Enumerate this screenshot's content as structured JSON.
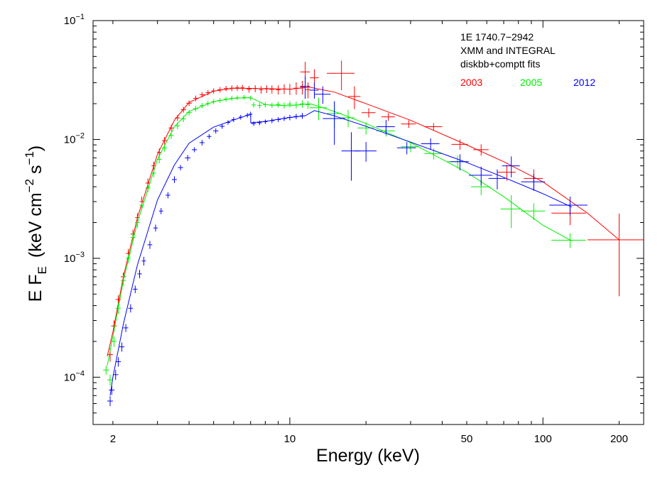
{
  "chart_data": {
    "type": "scatter",
    "x_scale": "log",
    "y_scale": "log",
    "xlim": [
      1.67,
      250
    ],
    "ylim": [
      4e-05,
      0.1
    ],
    "xlabel": "Energy (keV)",
    "ylabel": {
      "prefix": "E  F",
      "sub": "E",
      "units": "(keV cm",
      "exp1": "−2",
      "mid": " s",
      "exp2": "−1",
      "close": ")"
    },
    "x_tick_labels": [
      {
        "value": 2,
        "label": "2"
      },
      {
        "value": 10,
        "label": "10"
      },
      {
        "value": 50,
        "label": "50"
      },
      {
        "value": 100,
        "label": "100"
      },
      {
        "value": 200,
        "label": "200"
      }
    ],
    "y_tick_labels": [
      {
        "value": 0.0001,
        "base": "10",
        "exp": "−4"
      },
      {
        "value": 0.001,
        "base": "10",
        "exp": "−3"
      },
      {
        "value": 0.01,
        "base": "10",
        "exp": "−2"
      },
      {
        "value": 0.1,
        "base": "10",
        "exp": "−1"
      }
    ],
    "annotations": [
      "1E 1740.7−2942",
      "XMM and INTEGRAL",
      "diskbb+comptt fits"
    ],
    "legend_placement": "top-right",
    "grid": false,
    "series": [
      {
        "name": "2003",
        "color": "#ff0000",
        "model": {
          "x": [
            1.9,
            2.0,
            2.2,
            2.5,
            3.0,
            3.5,
            4.0,
            5.0,
            6.0,
            8.0,
            10.0,
            12.0,
            15.0,
            20.0,
            30.0,
            50.0,
            70.0,
            100.0,
            150.0,
            200.0
          ],
          "y": [
            0.00015,
            0.00024,
            0.0007,
            0.0022,
            0.0075,
            0.0145,
            0.0205,
            0.0255,
            0.027,
            0.0268,
            0.0265,
            0.0275,
            0.025,
            0.02,
            0.0145,
            0.009,
            0.0065,
            0.0044,
            0.0024,
            0.00143
          ]
        },
        "points": [
          [
            1.95,
            0.000155,
            0.05,
            2e-05
          ],
          [
            2.02,
            0.00027,
            0.05,
            3e-05
          ],
          [
            2.1,
            0.00045,
            0.05,
            4e-05
          ],
          [
            2.2,
            0.0007,
            0.05,
            6e-05
          ],
          [
            2.3,
            0.0011,
            0.05,
            0.0001
          ],
          [
            2.4,
            0.0016,
            0.05,
            0.00014
          ],
          [
            2.5,
            0.0022,
            0.05,
            0.0002
          ],
          [
            2.6,
            0.003,
            0.05,
            0.0003
          ],
          [
            2.75,
            0.0043,
            0.06,
            0.0004
          ],
          [
            2.9,
            0.006,
            0.06,
            0.0005
          ],
          [
            3.05,
            0.0078,
            0.06,
            0.0006
          ],
          [
            3.2,
            0.0098,
            0.07,
            0.0007
          ],
          [
            3.4,
            0.0125,
            0.08,
            0.0008
          ],
          [
            3.6,
            0.0152,
            0.08,
            0.0009
          ],
          [
            3.8,
            0.0178,
            0.09,
            0.001
          ],
          [
            4.0,
            0.0202,
            0.1,
            0.0011
          ],
          [
            4.25,
            0.0222,
            0.1,
            0.0012
          ],
          [
            4.5,
            0.0238,
            0.1,
            0.0012
          ],
          [
            4.75,
            0.0248,
            0.1,
            0.0013
          ],
          [
            5.0,
            0.0256,
            0.1,
            0.0013
          ],
          [
            5.3,
            0.0262,
            0.12,
            0.0014
          ],
          [
            5.6,
            0.0268,
            0.12,
            0.0014
          ],
          [
            5.9,
            0.027,
            0.12,
            0.0015
          ],
          [
            6.2,
            0.0272,
            0.12,
            0.0015
          ],
          [
            6.5,
            0.0272,
            0.12,
            0.0016
          ],
          [
            6.9,
            0.0265,
            0.15,
            0.0017
          ],
          [
            7.3,
            0.0268,
            0.15,
            0.0018
          ],
          [
            7.7,
            0.0262,
            0.15,
            0.0019
          ],
          [
            8.1,
            0.0266,
            0.15,
            0.002
          ],
          [
            8.5,
            0.0264,
            0.2,
            0.0021
          ],
          [
            9.0,
            0.0262,
            0.2,
            0.0023
          ],
          [
            9.5,
            0.0266,
            0.2,
            0.0025
          ],
          [
            10.0,
            0.0265,
            0.25,
            0.0028
          ],
          [
            10.6,
            0.027,
            0.25,
            0.0032
          ],
          [
            11.2,
            0.0275,
            0.25,
            0.0036
          ],
          [
            11.8,
            0.0262,
            0.25,
            0.004
          ],
          [
            11.5,
            0.037,
            0.5,
            0.008
          ],
          [
            12.5,
            0.033,
            0.5,
            0.006
          ],
          [
            16.0,
            0.036,
            2.0,
            0.01
          ],
          [
            18.0,
            0.023,
            1.0,
            0.005
          ],
          [
            20.5,
            0.0168,
            1.3,
            0.0015
          ],
          [
            24.5,
            0.0155,
            1.5,
            0.0012
          ],
          [
            29.5,
            0.0135,
            2.0,
            0.001
          ],
          [
            37.0,
            0.0128,
            3.0,
            0.0009
          ],
          [
            47.0,
            0.0091,
            3.5,
            0.0009
          ],
          [
            57.0,
            0.0082,
            4.0,
            0.0009
          ],
          [
            72.0,
            0.0053,
            6.0,
            0.0008
          ],
          [
            92.0,
            0.0047,
            8.0,
            0.0009
          ],
          [
            128.0,
            0.0024,
            20.0,
            0.0005
          ],
          [
            200.0,
            0.00143,
            50.0,
            0.00095
          ]
        ]
      },
      {
        "name": "2005",
        "color": "#00ee00",
        "model": {
          "x": [
            1.9,
            2.0,
            2.2,
            2.5,
            3.0,
            3.5,
            4.0,
            5.0,
            6.0,
            7.0,
            8.0,
            10.0,
            12.0,
            15.0,
            20.0,
            30.0,
            50.0,
            70.0,
            100.0,
            130.0
          ],
          "y": [
            0.000125,
            0.00022,
            0.00065,
            0.002,
            0.0068,
            0.0128,
            0.0172,
            0.0208,
            0.0222,
            0.0225,
            0.0196,
            0.0192,
            0.02,
            0.0172,
            0.0136,
            0.0094,
            0.0053,
            0.0033,
            0.0019,
            0.0014
          ]
        },
        "points": [
          [
            1.88,
            0.000115,
            0.05,
            1e-05
          ],
          [
            1.95,
            9.5e-05,
            0.05,
            1e-05
          ],
          [
            2.02,
            0.0002,
            0.05,
            2e-05
          ],
          [
            2.1,
            0.00038,
            0.05,
            4e-05
          ],
          [
            2.2,
            0.00065,
            0.05,
            6e-05
          ],
          [
            2.3,
            0.001,
            0.05,
            9e-05
          ],
          [
            2.4,
            0.0015,
            0.05,
            0.00013
          ],
          [
            2.5,
            0.002,
            0.05,
            0.00018
          ],
          [
            2.6,
            0.0028,
            0.05,
            0.00025
          ],
          [
            2.75,
            0.0039,
            0.06,
            0.0003
          ],
          [
            2.9,
            0.0052,
            0.06,
            0.0004
          ],
          [
            3.05,
            0.0068,
            0.06,
            0.0005
          ],
          [
            3.2,
            0.0085,
            0.07,
            0.0006
          ],
          [
            3.4,
            0.0108,
            0.08,
            0.0007
          ],
          [
            3.6,
            0.013,
            0.08,
            0.0008
          ],
          [
            3.8,
            0.0149,
            0.09,
            0.0009
          ],
          [
            4.0,
            0.0168,
            0.1,
            0.0009
          ],
          [
            4.25,
            0.0182,
            0.1,
            0.001
          ],
          [
            4.5,
            0.0193,
            0.1,
            0.001
          ],
          [
            4.75,
            0.0201,
            0.1,
            0.001
          ],
          [
            5.0,
            0.0208,
            0.1,
            0.001
          ],
          [
            5.3,
            0.0213,
            0.12,
            0.001
          ],
          [
            5.6,
            0.0218,
            0.12,
            0.001
          ],
          [
            5.9,
            0.0222,
            0.12,
            0.001
          ],
          [
            6.2,
            0.0224,
            0.12,
            0.001
          ],
          [
            6.6,
            0.0226,
            0.12,
            0.001
          ],
          [
            7.0,
            0.0223,
            0.12,
            0.001
          ],
          [
            7.2,
            0.0195,
            0.15,
            0.001
          ],
          [
            7.6,
            0.0193,
            0.15,
            0.001
          ],
          [
            8.0,
            0.0196,
            0.15,
            0.001
          ],
          [
            8.5,
            0.0194,
            0.2,
            0.001
          ],
          [
            9.0,
            0.0197,
            0.2,
            0.0011
          ],
          [
            9.5,
            0.0193,
            0.2,
            0.0011
          ],
          [
            10.0,
            0.0198,
            0.25,
            0.0012
          ],
          [
            10.6,
            0.0195,
            0.25,
            0.0013
          ],
          [
            11.2,
            0.0199,
            0.25,
            0.0014
          ],
          [
            11.8,
            0.0196,
            0.25,
            0.0015
          ],
          [
            13.0,
            0.0185,
            1.0,
            0.004
          ],
          [
            15.0,
            0.0165,
            1.0,
            0.004
          ],
          [
            17.0,
            0.0152,
            1.0,
            0.0025
          ],
          [
            20.0,
            0.0125,
            1.5,
            0.0015
          ],
          [
            24.0,
            0.0118,
            2.0,
            0.0012
          ],
          [
            30.0,
            0.0087,
            2.5,
            0.0009
          ],
          [
            37.0,
            0.0076,
            3.0,
            0.0008
          ],
          [
            46.0,
            0.0065,
            4.0,
            0.0008
          ],
          [
            57.0,
            0.004,
            5.0,
            0.0006
          ],
          [
            75.0,
            0.0026,
            7.0,
            0.0008
          ],
          [
            92.0,
            0.0025,
            10.0,
            0.0004
          ],
          [
            128.0,
            0.00142,
            20.0,
            0.0002
          ]
        ]
      },
      {
        "name": "2012",
        "color": "#0000ff",
        "model": {
          "x": [
            1.95,
            2.0,
            2.2,
            2.5,
            3.0,
            3.5,
            4.0,
            5.0,
            6.0,
            7.0,
            7.01,
            8.0,
            10.0,
            11.5,
            12.5,
            15.0,
            20.0,
            30.0,
            50.0,
            70.0,
            100.0,
            130.0
          ],
          "y": [
            7e-05,
            0.0001,
            0.00028,
            0.00088,
            0.0031,
            0.0061,
            0.0093,
            0.0127,
            0.0146,
            0.0163,
            0.0138,
            0.0142,
            0.0153,
            0.0158,
            0.0175,
            0.0158,
            0.0129,
            0.0095,
            0.0064,
            0.0048,
            0.0035,
            0.0027
          ]
        },
        "points": [
          [
            1.95,
            6.3e-05,
            0.05,
            6e-06
          ],
          [
            1.98,
            7.8e-05,
            0.05,
            7e-06
          ],
          [
            2.05,
            0.000105,
            0.05,
            1e-05
          ],
          [
            2.1,
            0.000135,
            0.05,
            1.2e-05
          ],
          [
            2.17,
            0.00018,
            0.05,
            1.6e-05
          ],
          [
            2.25,
            0.00026,
            0.05,
            2e-05
          ],
          [
            2.35,
            0.00038,
            0.05,
            3e-05
          ],
          [
            2.45,
            0.00055,
            0.05,
            4e-05
          ],
          [
            2.55,
            0.00074,
            0.05,
            6e-05
          ],
          [
            2.65,
            0.00095,
            0.05,
            8e-05
          ],
          [
            2.8,
            0.0013,
            0.06,
            0.0001
          ],
          [
            2.95,
            0.0018,
            0.06,
            0.00012
          ],
          [
            3.1,
            0.0025,
            0.06,
            0.00015
          ],
          [
            3.3,
            0.0034,
            0.07,
            0.0002
          ],
          [
            3.5,
            0.0046,
            0.08,
            0.0003
          ],
          [
            3.7,
            0.0058,
            0.09,
            0.0003
          ],
          [
            3.95,
            0.007,
            0.1,
            0.0004
          ],
          [
            4.2,
            0.0082,
            0.1,
            0.0004
          ],
          [
            4.5,
            0.0094,
            0.1,
            0.0005
          ],
          [
            4.8,
            0.0106,
            0.1,
            0.0005
          ],
          [
            5.1,
            0.0118,
            0.12,
            0.0006
          ],
          [
            5.4,
            0.0129,
            0.12,
            0.0006
          ],
          [
            5.7,
            0.0139,
            0.12,
            0.0006
          ],
          [
            6.0,
            0.0147,
            0.12,
            0.0007
          ],
          [
            6.4,
            0.0154,
            0.12,
            0.0007
          ],
          [
            6.8,
            0.016,
            0.12,
            0.0007
          ],
          [
            7.0,
            0.0163,
            0.12,
            0.0008
          ],
          [
            7.2,
            0.0136,
            0.15,
            0.0006
          ],
          [
            7.6,
            0.0138,
            0.15,
            0.0006
          ],
          [
            8.0,
            0.0141,
            0.15,
            0.0006
          ],
          [
            8.5,
            0.0144,
            0.2,
            0.0007
          ],
          [
            9.0,
            0.0147,
            0.2,
            0.0007
          ],
          [
            9.5,
            0.015,
            0.2,
            0.0007
          ],
          [
            10.0,
            0.0153,
            0.25,
            0.0008
          ],
          [
            10.6,
            0.0156,
            0.25,
            0.0008
          ],
          [
            11.2,
            0.0158,
            0.25,
            0.0009
          ],
          [
            11.5,
            0.028,
            0.5,
            0.006
          ],
          [
            12.5,
            0.026,
            0.5,
            0.004
          ],
          [
            13.5,
            0.024,
            1.0,
            0.004
          ],
          [
            15.0,
            0.015,
            1.5,
            0.006
          ],
          [
            17.5,
            0.008,
            1.5,
            0.0035
          ],
          [
            20.0,
            0.008,
            2.0,
            0.0015
          ],
          [
            24.0,
            0.0128,
            2.0,
            0.0018
          ],
          [
            29.0,
            0.0085,
            2.5,
            0.001
          ],
          [
            36.0,
            0.0092,
            3.0,
            0.001
          ],
          [
            47.0,
            0.0065,
            4.0,
            0.001
          ],
          [
            57.0,
            0.005,
            6.0,
            0.0009
          ],
          [
            66.0,
            0.0047,
            5.0,
            0.0009
          ],
          [
            75.0,
            0.006,
            6.0,
            0.0012
          ],
          [
            92.0,
            0.0044,
            10.0,
            0.0007
          ],
          [
            128.0,
            0.0028,
            22.0,
            0.0005
          ]
        ]
      }
    ]
  }
}
